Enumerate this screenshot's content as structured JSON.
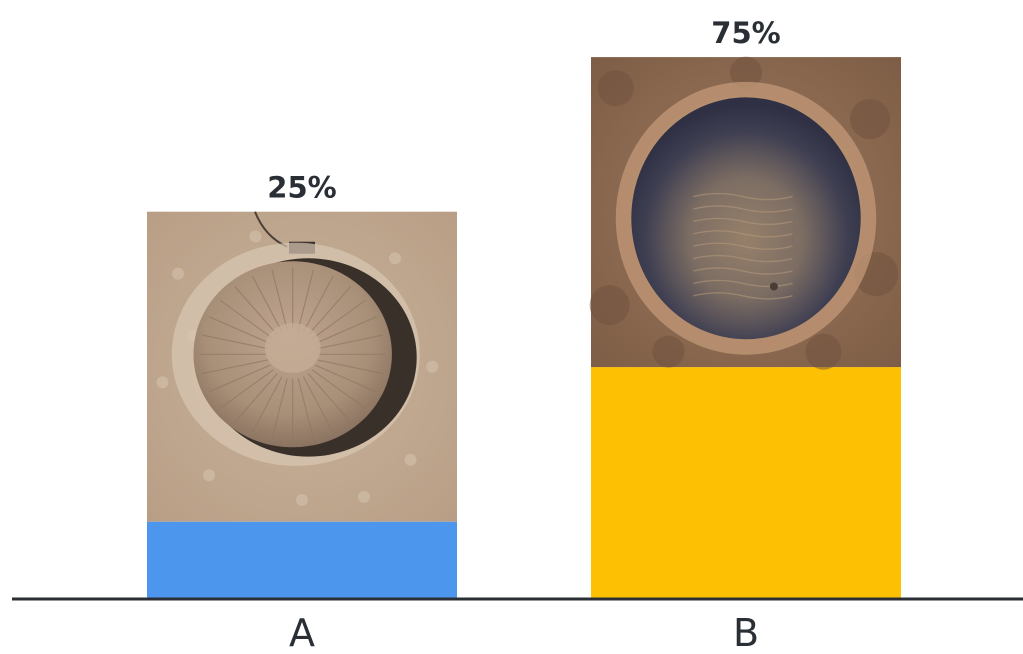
{
  "chart_data": {
    "type": "bar",
    "categories": [
      "A",
      "B"
    ],
    "values": [
      25,
      75
    ],
    "value_labels": [
      "25%",
      "75%"
    ],
    "colors": [
      "#4d96ee",
      "#fec002"
    ],
    "axis_color": "#2a2f36",
    "label_color": "#2a2f36",
    "title": "",
    "xlabel": "",
    "ylabel": "",
    "ylim": [
      0,
      100
    ],
    "grid": false,
    "legend": "none",
    "bar_images": [
      "crater-photo-earth",
      "crater-photo-mars"
    ]
  }
}
